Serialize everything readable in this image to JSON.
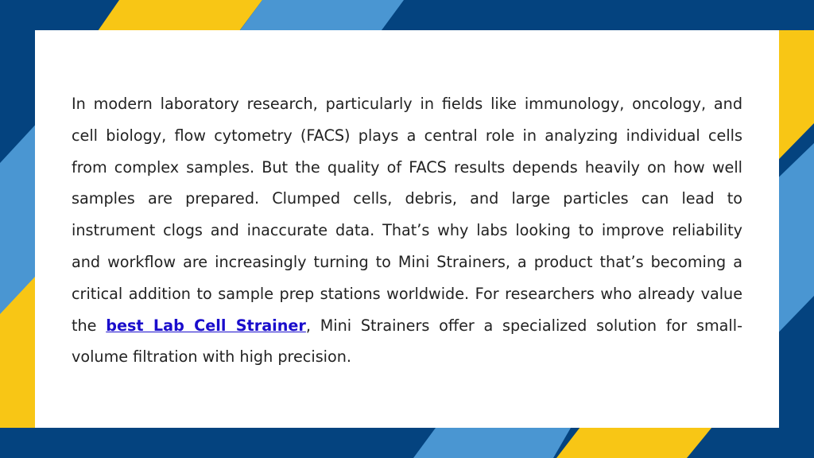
{
  "colors": {
    "navy": "#04437f",
    "mid_blue": "#4a96d2",
    "yellow": "#f8c615",
    "text": "#222222",
    "link": "#1a0dcc",
    "card": "#ffffff"
  },
  "body": {
    "before_link": "In modern laboratory research, particularly in fields like immunology, oncology, and cell biology, flow cytometry (FACS) plays a central role in analyzing individual cells from complex samples. But the quality of FACS results depends heavily on how well samples are prepared. Clumped cells, debris, and large particles can lead to instrument clogs and inaccurate data. That’s why labs looking to improve reliability and workflow are increasingly turning to Mini Strainers, a product that’s becoming a critical addition to sample prep stations worldwide. For researchers who already value the ",
    "link_text": "best Lab Cell Strainer",
    "after_link": ", Mini Strainers offer a specialized solution for small-volume filtration with high precision."
  }
}
